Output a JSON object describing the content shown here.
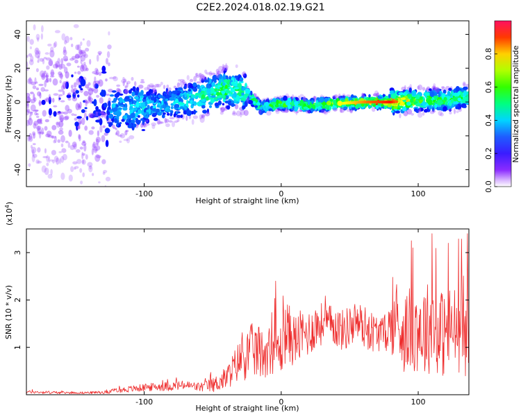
{
  "page": {
    "title": "C2E2.2024.018.02.19.G21"
  },
  "chart_data": [
    {
      "type": "heatmap",
      "xlabel": "Height of straight line (km)",
      "ylabel": "Frequency (Hz)",
      "xlim": [
        -186,
        137
      ],
      "ylim": [
        -50,
        48
      ],
      "xticks": [
        -100,
        0,
        100
      ],
      "yticks": [
        -40,
        -20,
        0,
        20,
        40
      ],
      "grid": false,
      "description_of_values": "normalized spectral amplitude concentrated near 0 Hz; broad scatter for x < -120, narrowing toward x = 80",
      "ridge": {
        "x": [
          -180,
          -150,
          -120,
          -100,
          -80,
          -60,
          -40,
          -25,
          -15,
          0,
          20,
          40,
          60,
          80,
          100,
          120,
          135
        ],
        "y": [
          0,
          0,
          -4,
          -3,
          -1,
          3,
          8,
          5,
          -3,
          -1,
          -2,
          -1,
          0,
          0,
          1,
          1,
          3
        ],
        "peak_amplitude": [
          0.2,
          0.25,
          0.3,
          0.35,
          0.3,
          0.45,
          0.55,
          0.45,
          0.5,
          0.6,
          0.6,
          0.7,
          0.85,
          0.95,
          0.6,
          0.55,
          0.5
        ]
      },
      "colorbar": {
        "label": "Normalized spectral amplitude",
        "range": [
          0,
          1
        ],
        "ticks": [
          "0.0",
          "0.2",
          "0.4",
          "0.6",
          "0.8"
        ],
        "tick_values": [
          0,
          0.2,
          0.4,
          0.6,
          0.8
        ],
        "colormap": "hue (rainbow)"
      }
    },
    {
      "type": "line",
      "xlabel": "Height of straight line (km)",
      "ylabel": "SNR (10 * v/v)",
      "scale_label_base": "(x10",
      "scale_label_exp": "4",
      "scale_label_close": ")",
      "xlim": [
        -186,
        137
      ],
      "ylim": [
        0,
        3.5
      ],
      "xticks": [
        -100,
        0,
        100
      ],
      "yticks": [
        1,
        2,
        3
      ],
      "grid": false,
      "series": [
        {
          "color": "#ee2b2b",
          "x": [
            -186,
            -170,
            -150,
            -130,
            -120,
            -110,
            -100,
            -90,
            -80,
            -70,
            -60,
            -50,
            -40,
            -35,
            -30,
            -25,
            -20,
            -15,
            -10,
            -5,
            0,
            3,
            10,
            15,
            20,
            25,
            30,
            35,
            40,
            45,
            50,
            55,
            60,
            65,
            70,
            75,
            80,
            85,
            90,
            95,
            100,
            105,
            110,
            115,
            120,
            125,
            130,
            137
          ],
          "y": [
            0.06,
            0.05,
            0.04,
            0.05,
            0.09,
            0.12,
            0.15,
            0.17,
            0.18,
            0.2,
            0.16,
            0.2,
            0.35,
            0.55,
            0.75,
            0.85,
            0.95,
            0.85,
            0.95,
            0.95,
            0.95,
            1.35,
            1.15,
            1.25,
            1.3,
            1.45,
            1.5,
            1.5,
            1.45,
            1.35,
            1.45,
            1.55,
            1.45,
            1.35,
            1.3,
            1.3,
            1.45,
            1.5,
            1.3,
            1.4,
            1.45,
            1.35,
            1.5,
            1.3,
            1.3,
            1.4,
            1.35,
            1.3
          ],
          "noise": [
            0.03,
            0.03,
            0.02,
            0.03,
            0.05,
            0.07,
            0.08,
            0.09,
            0.1,
            0.1,
            0.1,
            0.15,
            0.25,
            0.35,
            0.45,
            0.55,
            0.6,
            0.55,
            0.55,
            0.5,
            0.55,
            0.7,
            0.55,
            0.55,
            0.5,
            0.5,
            0.45,
            0.4,
            0.45,
            0.45,
            0.45,
            0.45,
            0.45,
            0.45,
            0.4,
            0.35,
            0.6,
            0.8,
            0.85,
            0.9,
            1.0,
            1.0,
            1.0,
            0.95,
            0.95,
            0.95,
            0.9,
            1.0
          ],
          "peaks": [
            {
              "x": -4,
              "y": 2.4
            },
            {
              "x": 96,
              "y": 3.1
            },
            {
              "x": 110,
              "y": 3.4
            },
            {
              "x": 122,
              "y": 3.2
            },
            {
              "x": 136,
              "y": 3.4
            }
          ]
        }
      ]
    }
  ]
}
